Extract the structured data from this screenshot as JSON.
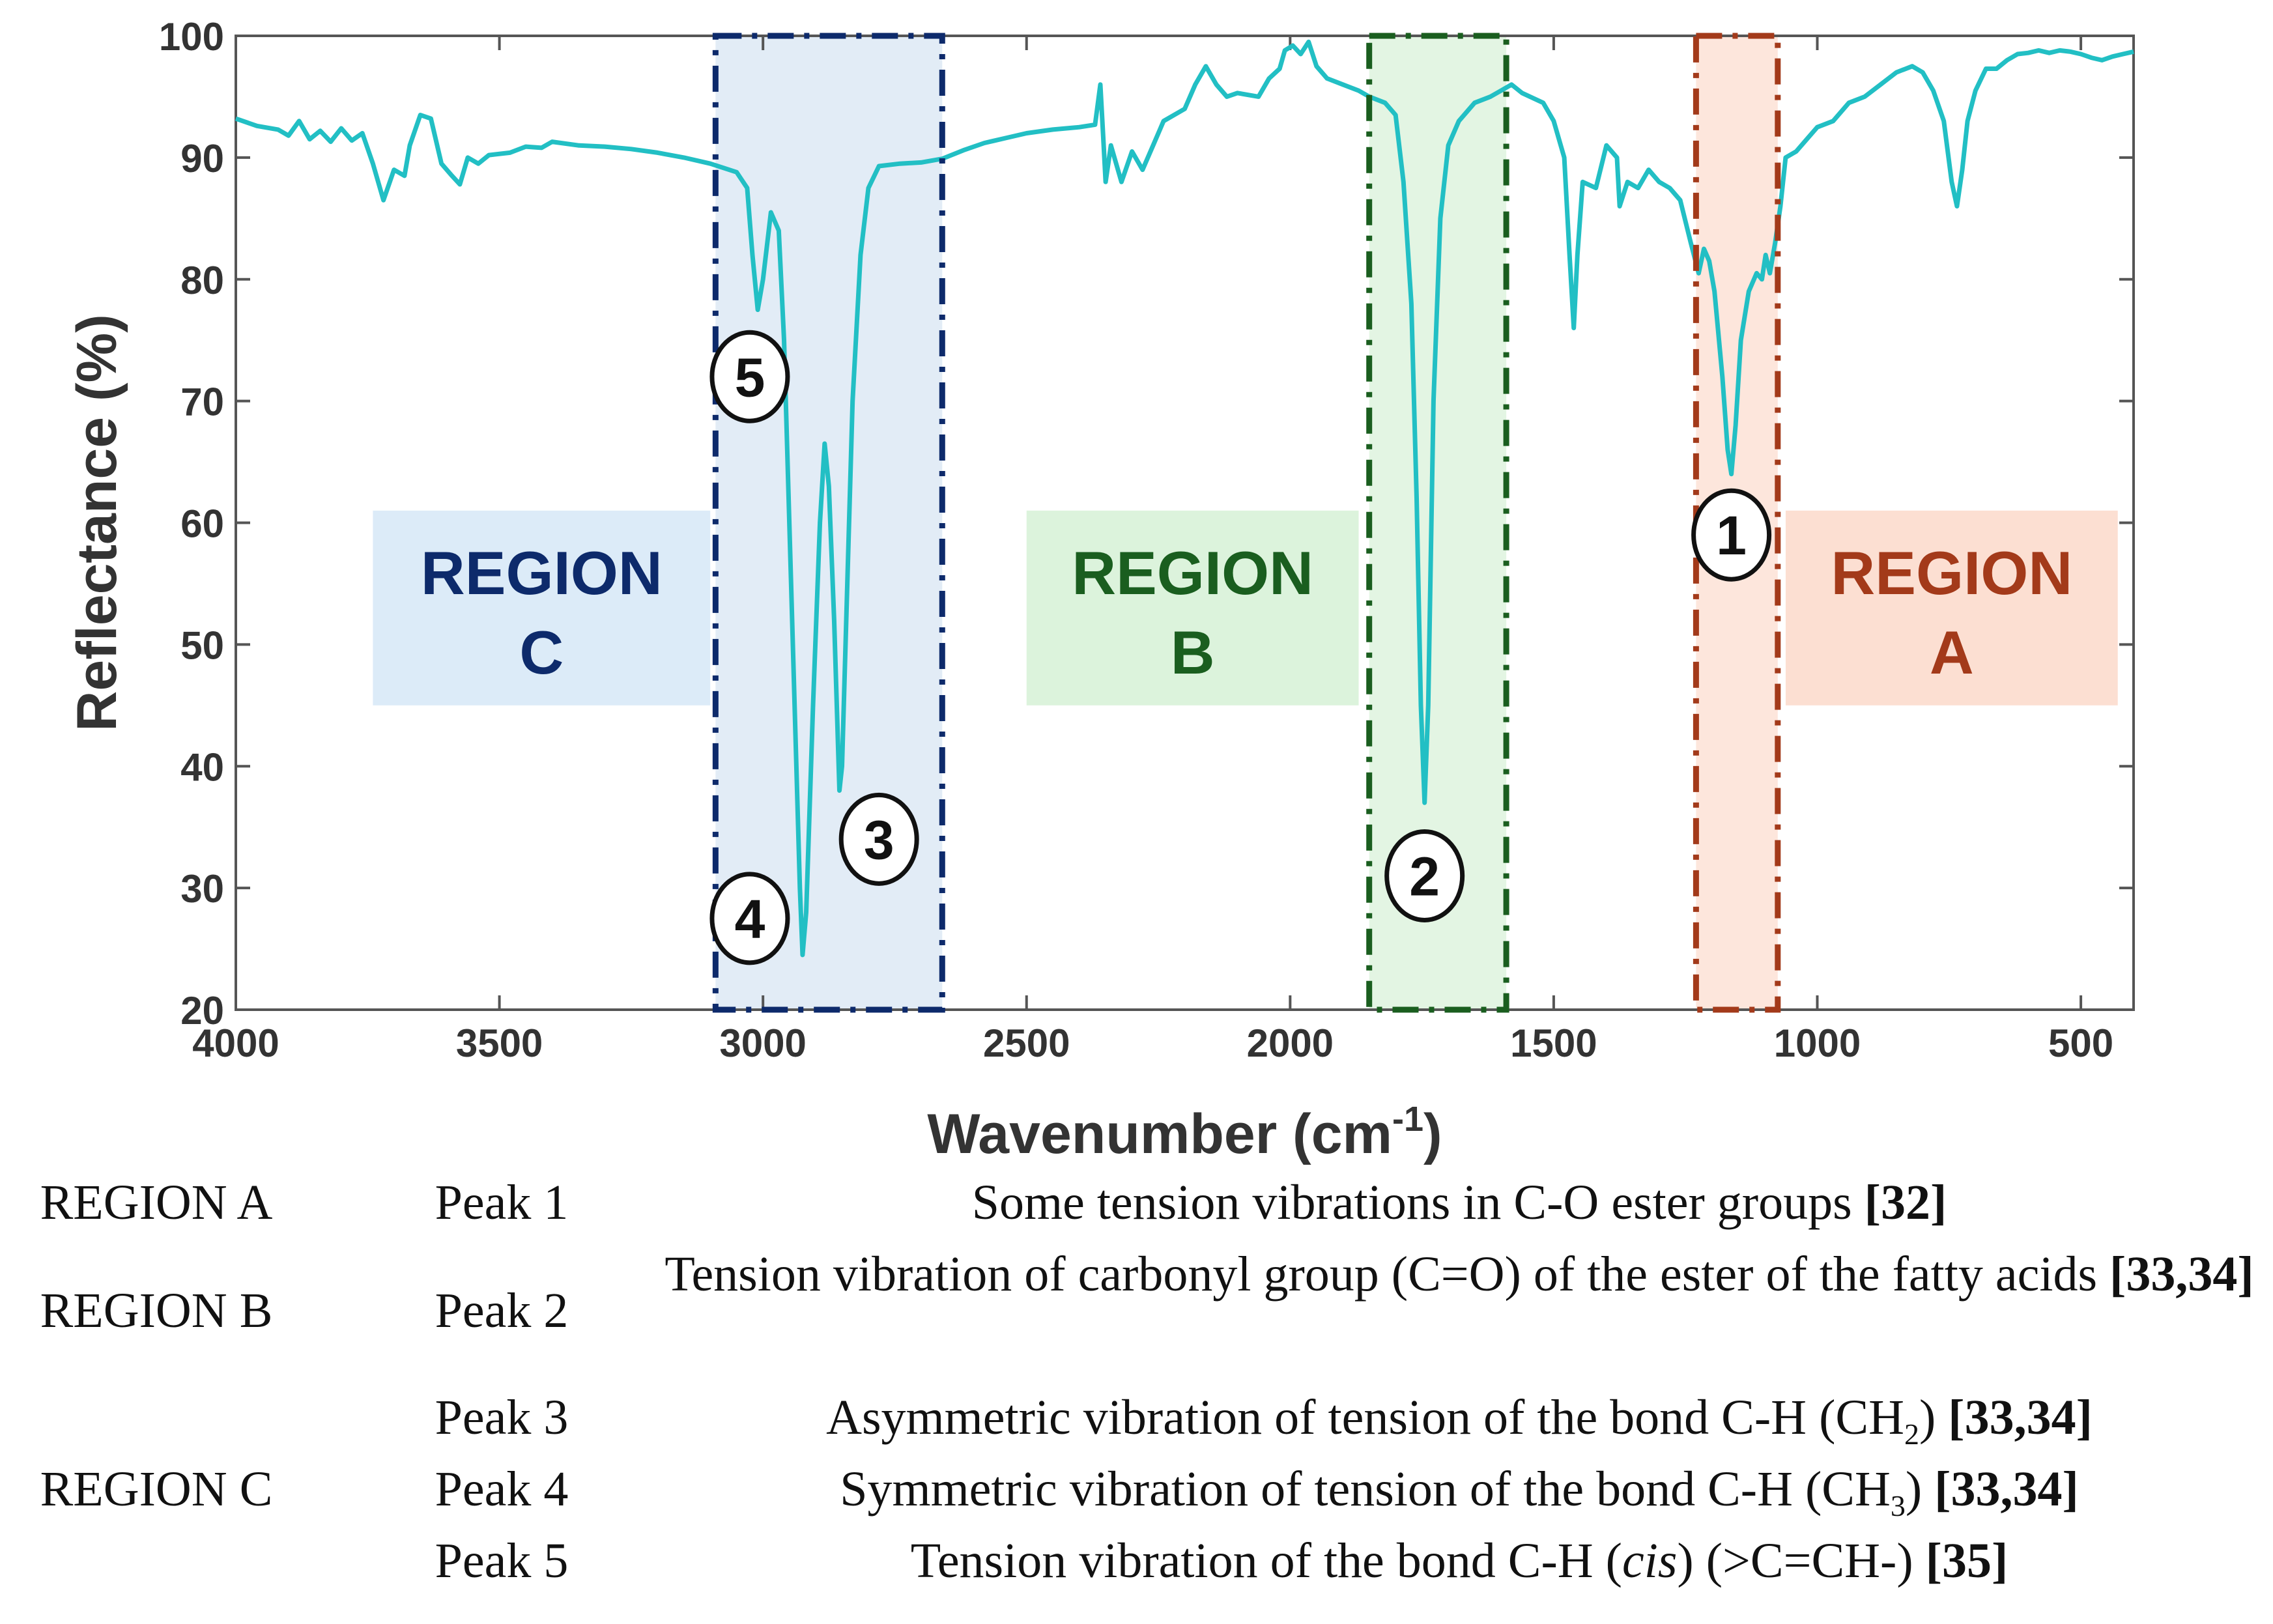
{
  "chart_data": {
    "type": "line",
    "title": "",
    "xlabel": "Wavenumber (cm",
    "xlabel_sup": "-1",
    "xlabel_close": ")",
    "ylabel": "Reflectance (%)",
    "xlim": [
      4000,
      400
    ],
    "ylim": [
      20,
      100
    ],
    "x_reversed": true,
    "x_ticks": [
      4000,
      3500,
      3000,
      2500,
      2000,
      1500,
      1000,
      500
    ],
    "x_tick_labels": [
      "4000",
      "3500",
      "3000",
      "2500",
      "2000",
      "1500",
      "1000",
      "500"
    ],
    "y_ticks": [
      20,
      30,
      40,
      50,
      60,
      70,
      80,
      90,
      100
    ],
    "y_tick_labels": [
      "20",
      "30",
      "40",
      "50",
      "60",
      "70",
      "80",
      "90",
      "100"
    ],
    "line_color": "#22bfc4",
    "series": [
      {
        "name": "Reflectance",
        "points": [
          [
            4000,
            93.2
          ],
          [
            3960,
            92.6
          ],
          [
            3920,
            92.3
          ],
          [
            3900,
            91.8
          ],
          [
            3880,
            93.0
          ],
          [
            3860,
            91.5
          ],
          [
            3840,
            92.2
          ],
          [
            3820,
            91.3
          ],
          [
            3800,
            92.4
          ],
          [
            3780,
            91.4
          ],
          [
            3760,
            92.0
          ],
          [
            3740,
            89.5
          ],
          [
            3720,
            86.5
          ],
          [
            3700,
            89.0
          ],
          [
            3680,
            88.5
          ],
          [
            3670,
            91.0
          ],
          [
            3650,
            93.5
          ],
          [
            3630,
            93.2
          ],
          [
            3610,
            89.5
          ],
          [
            3590,
            88.5
          ],
          [
            3575,
            87.8
          ],
          [
            3560,
            90.0
          ],
          [
            3540,
            89.5
          ],
          [
            3520,
            90.2
          ],
          [
            3480,
            90.4
          ],
          [
            3450,
            90.9
          ],
          [
            3420,
            90.8
          ],
          [
            3400,
            91.3
          ],
          [
            3350,
            91.0
          ],
          [
            3300,
            90.9
          ],
          [
            3250,
            90.7
          ],
          [
            3200,
            90.4
          ],
          [
            3150,
            90.0
          ],
          [
            3100,
            89.5
          ],
          [
            3050,
            88.8
          ],
          [
            3030,
            87.5
          ],
          [
            3020,
            82.0
          ],
          [
            3010,
            77.5
          ],
          [
            3000,
            80.0
          ],
          [
            2985,
            85.5
          ],
          [
            2970,
            84.0
          ],
          [
            2960,
            75.0
          ],
          [
            2950,
            60.0
          ],
          [
            2940,
            45.0
          ],
          [
            2930,
            30.0
          ],
          [
            2925,
            24.5
          ],
          [
            2918,
            28.0
          ],
          [
            2905,
            45.0
          ],
          [
            2892,
            60.0
          ],
          [
            2883,
            66.5
          ],
          [
            2875,
            63.0
          ],
          [
            2865,
            52.0
          ],
          [
            2855,
            38.0
          ],
          [
            2850,
            40.0
          ],
          [
            2840,
            55.0
          ],
          [
            2830,
            70.0
          ],
          [
            2815,
            82.0
          ],
          [
            2800,
            87.5
          ],
          [
            2780,
            89.3
          ],
          [
            2740,
            89.5
          ],
          [
            2700,
            89.6
          ],
          [
            2660,
            89.9
          ],
          [
            2620,
            90.6
          ],
          [
            2580,
            91.2
          ],
          [
            2540,
            91.6
          ],
          [
            2500,
            92.0
          ],
          [
            2450,
            92.3
          ],
          [
            2400,
            92.5
          ],
          [
            2370,
            92.7
          ],
          [
            2360,
            96.0
          ],
          [
            2355,
            92.0
          ],
          [
            2350,
            88.0
          ],
          [
            2340,
            91.0
          ],
          [
            2320,
            88.0
          ],
          [
            2300,
            90.5
          ],
          [
            2280,
            89.0
          ],
          [
            2260,
            91.0
          ],
          [
            2240,
            93.0
          ],
          [
            2200,
            94.0
          ],
          [
            2180,
            96.0
          ],
          [
            2160,
            97.5
          ],
          [
            2140,
            96.0
          ],
          [
            2120,
            95.0
          ],
          [
            2100,
            95.3
          ],
          [
            2060,
            95.0
          ],
          [
            2040,
            96.5
          ],
          [
            2020,
            97.3
          ],
          [
            2010,
            98.8
          ],
          [
            1995,
            99.2
          ],
          [
            1980,
            98.5
          ],
          [
            1965,
            99.5
          ],
          [
            1950,
            97.5
          ],
          [
            1930,
            96.5
          ],
          [
            1900,
            96.0
          ],
          [
            1870,
            95.5
          ],
          [
            1850,
            95.0
          ],
          [
            1820,
            94.5
          ],
          [
            1800,
            93.5
          ],
          [
            1785,
            88.0
          ],
          [
            1770,
            78.0
          ],
          [
            1760,
            62.0
          ],
          [
            1752,
            45.0
          ],
          [
            1745,
            37.0
          ],
          [
            1738,
            45.0
          ],
          [
            1728,
            70.0
          ],
          [
            1715,
            85.0
          ],
          [
            1700,
            91.0
          ],
          [
            1680,
            93.0
          ],
          [
            1650,
            94.5
          ],
          [
            1620,
            95.0
          ],
          [
            1600,
            95.5
          ],
          [
            1580,
            96.0
          ],
          [
            1560,
            95.3
          ],
          [
            1520,
            94.5
          ],
          [
            1500,
            93.0
          ],
          [
            1480,
            90.0
          ],
          [
            1470,
            82.0
          ],
          [
            1462,
            76.0
          ],
          [
            1455,
            82.0
          ],
          [
            1445,
            88.0
          ],
          [
            1420,
            87.5
          ],
          [
            1400,
            91.0
          ],
          [
            1380,
            90.0
          ],
          [
            1375,
            86.0
          ],
          [
            1360,
            88.0
          ],
          [
            1340,
            87.5
          ],
          [
            1320,
            89.0
          ],
          [
            1300,
            88.0
          ],
          [
            1280,
            87.5
          ],
          [
            1260,
            86.5
          ],
          [
            1240,
            83.0
          ],
          [
            1225,
            80.5
          ],
          [
            1215,
            82.5
          ],
          [
            1205,
            81.5
          ],
          [
            1195,
            79.0
          ],
          [
            1180,
            72.0
          ],
          [
            1170,
            66.0
          ],
          [
            1163,
            64.0
          ],
          [
            1155,
            68.0
          ],
          [
            1145,
            75.0
          ],
          [
            1130,
            79.0
          ],
          [
            1115,
            80.5
          ],
          [
            1105,
            80.0
          ],
          [
            1098,
            82.0
          ],
          [
            1090,
            80.5
          ],
          [
            1080,
            83.0
          ],
          [
            1070,
            86.0
          ],
          [
            1060,
            90.0
          ],
          [
            1040,
            90.5
          ],
          [
            1020,
            91.5
          ],
          [
            1000,
            92.5
          ],
          [
            970,
            93.0
          ],
          [
            940,
            94.5
          ],
          [
            910,
            95.0
          ],
          [
            880,
            96.0
          ],
          [
            850,
            97.0
          ],
          [
            820,
            97.5
          ],
          [
            800,
            97.0
          ],
          [
            780,
            95.5
          ],
          [
            760,
            93.0
          ],
          [
            745,
            88.0
          ],
          [
            735,
            86.0
          ],
          [
            725,
            89.0
          ],
          [
            715,
            93.0
          ],
          [
            700,
            95.5
          ],
          [
            680,
            97.3
          ],
          [
            660,
            97.3
          ],
          [
            640,
            98.0
          ],
          [
            620,
            98.5
          ],
          [
            600,
            98.6
          ],
          [
            580,
            98.8
          ],
          [
            560,
            98.6
          ],
          [
            540,
            98.8
          ],
          [
            520,
            98.7
          ],
          [
            500,
            98.5
          ],
          [
            480,
            98.2
          ],
          [
            460,
            98.0
          ],
          [
            440,
            98.3
          ],
          [
            420,
            98.5
          ],
          [
            400,
            98.7
          ]
        ]
      }
    ],
    "regions": [
      {
        "id": "C",
        "label_line1": "REGION",
        "label_line2": "C",
        "x_range": [
          3090,
          2660
        ],
        "color": "#0d2a6b",
        "fill": "#e2ecf6",
        "label_bg": "#dcebf8",
        "label_x_range": [
          3740,
          3100
        ],
        "label_y_range": [
          45,
          61
        ]
      },
      {
        "id": "B",
        "label_line1": "REGION",
        "label_line2": "B",
        "x_range": [
          1850,
          1590
        ],
        "color": "#1a5e1f",
        "fill": "#e3f5e3",
        "label_bg": "#dcf3dc",
        "label_x_range": [
          2500,
          1870
        ],
        "label_y_range": [
          45,
          61
        ]
      },
      {
        "id": "A",
        "label_line1": "REGION",
        "label_line2": "A",
        "x_range": [
          1230,
          1075
        ],
        "color": "#a33a1a",
        "fill": "#fde6dc",
        "label_bg": "#fcdfd2",
        "label_x_range": [
          1060,
          430
        ],
        "label_y_range": [
          45,
          61
        ]
      }
    ],
    "peaks": [
      {
        "num": "1",
        "wavenumber": 1163,
        "label_x": 1163,
        "label_y": 59
      },
      {
        "num": "2",
        "wavenumber": 1745,
        "label_x": 1745,
        "label_y": 31
      },
      {
        "num": "3",
        "wavenumber": 2850,
        "label_x": 2780,
        "label_y": 34
      },
      {
        "num": "4",
        "wavenumber": 2925,
        "label_x": 3025,
        "label_y": 27.5
      },
      {
        "num": "5",
        "wavenumber": 3010,
        "label_x": 3025,
        "label_y": 72
      }
    ]
  },
  "table": {
    "rows": [
      {
        "region": "REGION A",
        "peak": "Peak 1",
        "desc": "Some tension vibrations in C-O ester groups",
        "desc_rest": "",
        "ref": "[32]"
      },
      {
        "region": "REGION B",
        "peak": "Peak 2",
        "desc": "Tension vibration of carbonyl group (C=O) of the ester of the fatty acids",
        "desc_rest": "",
        "ref": "[33,34]"
      },
      {
        "region": "",
        "peak": "Peak 3",
        "desc": "Asymmetric vibration of tension of the bond C-H (CH",
        "sub": "2",
        "desc_rest": ")",
        "ref": "[33,34]"
      },
      {
        "region": "REGION C",
        "peak": "Peak 4",
        "desc": "Symmetric vibration of tension of the bond C-H (CH",
        "sub": "3",
        "desc_rest": ")",
        "ref": "[33,34]"
      },
      {
        "region": "",
        "peak": "Peak 5",
        "desc": "Tension vibration of the bond C-H (",
        "italic": "cis",
        "desc_rest": ") (>C=CH-)",
        "ref": "[35]"
      }
    ]
  }
}
